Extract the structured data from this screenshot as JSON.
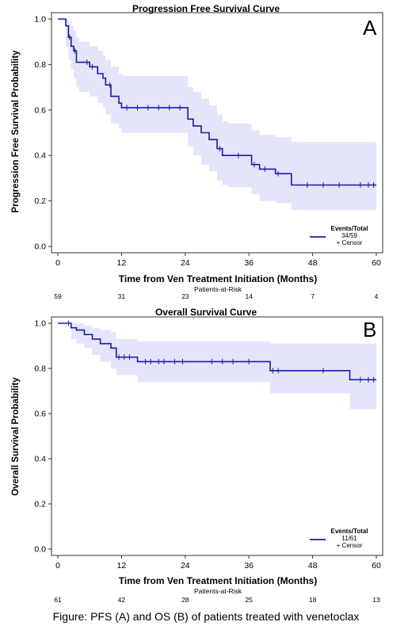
{
  "chart_data": [
    {
      "type": "line",
      "title": "Progression Free Survival Curve",
      "panel_letter": "A",
      "xlabel": "Time from Ven Treatment Initiation (Months)",
      "ylabel": "Progression Free Survival Probability",
      "xlim": [
        0,
        60
      ],
      "ylim": [
        0,
        1.0
      ],
      "x_ticks": [
        "0",
        "12",
        "24",
        "36",
        "48",
        "60"
      ],
      "y_ticks": [
        "0.0",
        "0.2",
        "0.4",
        "0.6",
        "0.8",
        "1.0"
      ],
      "grid": false,
      "legend_placement": "bottom-right",
      "legend": {
        "header": "Events/Total",
        "value": "34/59",
        "censor": "+ Censor"
      },
      "line_color": "#1a1aa6",
      "band_color": "#e4e4fb",
      "series": [
        {
          "x": [
            0,
            1.5,
            2.0,
            2.5,
            3.0,
            3.5,
            4.0,
            6.0,
            7.5,
            8.5,
            9.0,
            10.0,
            11.5,
            12.0,
            24.5,
            25.5,
            27.0,
            28.5,
            30.0,
            31.0,
            32.0,
            36.5,
            38.0,
            41.0,
            44.0,
            60
          ],
          "y": [
            1.0,
            0.97,
            0.92,
            0.88,
            0.86,
            0.81,
            0.81,
            0.79,
            0.76,
            0.74,
            0.71,
            0.66,
            0.63,
            0.61,
            0.56,
            0.53,
            0.5,
            0.47,
            0.43,
            0.4,
            0.4,
            0.36,
            0.34,
            0.32,
            0.27,
            0.27
          ],
          "ci_upper": [
            1.0,
            1.0,
            0.99,
            0.97,
            0.95,
            0.92,
            0.9,
            0.88,
            0.86,
            0.84,
            0.82,
            0.79,
            0.76,
            0.75,
            0.7,
            0.68,
            0.65,
            0.62,
            0.58,
            0.55,
            0.54,
            0.51,
            0.49,
            0.48,
            0.46,
            0.46
          ],
          "ci_lower": [
            1.0,
            0.88,
            0.82,
            0.78,
            0.74,
            0.7,
            0.68,
            0.66,
            0.63,
            0.61,
            0.58,
            0.54,
            0.52,
            0.5,
            0.44,
            0.4,
            0.36,
            0.33,
            0.29,
            0.27,
            0.26,
            0.23,
            0.2,
            0.19,
            0.16,
            0.16
          ],
          "censor_x": [
            2.2,
            3.2,
            5.5,
            6.5,
            9.8,
            13.0,
            15.0,
            17.0,
            19.0,
            21.0,
            23.0,
            30.5,
            34.0,
            37.0,
            39.0,
            41.5,
            47.0,
            50.0,
            53.0,
            57.0,
            58.5,
            59.5
          ]
        }
      ],
      "risk_table": {
        "title": "Patients-at-Risk",
        "x": [
          0,
          12,
          24,
          36,
          48,
          60
        ],
        "values": [
          "59",
          "31",
          "23",
          "14",
          "7",
          "4"
        ]
      }
    },
    {
      "type": "line",
      "title": "Overall Survival Curve",
      "panel_letter": "B",
      "xlabel": "Time from Ven Treatment Initiation (Months)",
      "ylabel": "Overall Survival Probability",
      "xlim": [
        0,
        60
      ],
      "ylim": [
        0,
        1.0
      ],
      "x_ticks": [
        "0",
        "12",
        "24",
        "36",
        "48",
        "60"
      ],
      "y_ticks": [
        "0.0",
        "0.2",
        "0.4",
        "0.6",
        "0.8",
        "1.0"
      ],
      "grid": false,
      "legend_placement": "bottom-right",
      "legend": {
        "header": "Events/Total",
        "value": "11/61",
        "censor": "+ Censor"
      },
      "line_color": "#1a1aa6",
      "band_color": "#e4e4fb",
      "series": [
        {
          "x": [
            0,
            2.5,
            3.5,
            5.0,
            6.5,
            8.0,
            10.0,
            11.0,
            15.0,
            40.0,
            55.0,
            60
          ],
          "y": [
            1.0,
            0.98,
            0.97,
            0.95,
            0.93,
            0.91,
            0.89,
            0.85,
            0.83,
            0.79,
            0.75,
            0.75
          ],
          "ci_upper": [
            1.0,
            1.0,
            1.0,
            0.99,
            0.98,
            0.97,
            0.96,
            0.93,
            0.92,
            0.91,
            0.91,
            0.91
          ],
          "ci_lower": [
            1.0,
            0.93,
            0.91,
            0.89,
            0.86,
            0.83,
            0.8,
            0.77,
            0.74,
            0.69,
            0.62,
            0.62
          ],
          "censor_x": [
            2.0,
            11.5,
            12.5,
            13.5,
            16.5,
            17.5,
            19.0,
            20.0,
            22.0,
            23.5,
            29.0,
            31.0,
            33.0,
            36.0,
            40.5,
            41.5,
            50.0,
            57.0,
            58.5,
            59.5
          ]
        }
      ],
      "risk_table": {
        "title": "Patients-at-Risk",
        "x": [
          0,
          12,
          24,
          36,
          48,
          60
        ],
        "values": [
          "61",
          "42",
          "28",
          "25",
          "18",
          "13"
        ]
      }
    }
  ],
  "caption": "Figure: PFS (A) and OS (B) of patients treated with venetoclax"
}
